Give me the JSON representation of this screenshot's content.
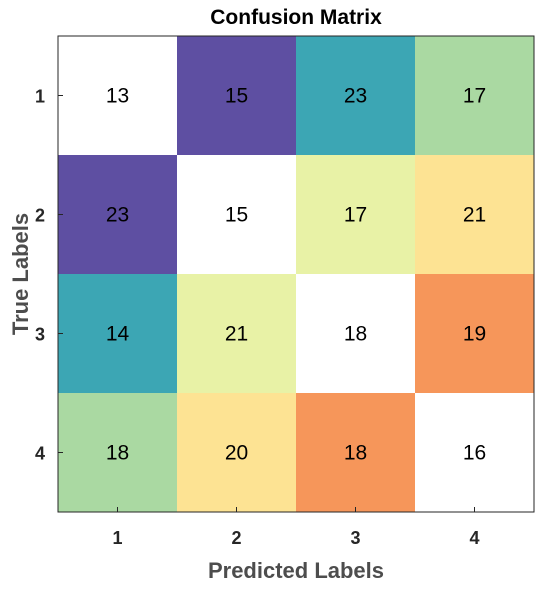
{
  "chart_data": {
    "type": "heatmap",
    "title": "Confusion Matrix",
    "xlabel": "Predicted Labels",
    "ylabel": "True Labels",
    "x_categories": [
      "1",
      "2",
      "3",
      "4"
    ],
    "y_categories": [
      "1",
      "2",
      "3",
      "4"
    ],
    "values": [
      [
        13,
        15,
        23,
        17
      ],
      [
        23,
        15,
        17,
        21
      ],
      [
        14,
        21,
        18,
        19
      ],
      [
        18,
        20,
        18,
        16
      ]
    ],
    "cell_colors": [
      [
        "#ffffff",
        "#5e4fa2",
        "#3ca6b4",
        "#aad9a2"
      ],
      [
        "#5e4fa2",
        "#ffffff",
        "#e8f2a6",
        "#fde393"
      ],
      [
        "#3ca6b4",
        "#e8f2a6",
        "#ffffff",
        "#f6965a"
      ],
      [
        "#aad9a2",
        "#fde393",
        "#f6965a",
        "#ffffff"
      ]
    ]
  }
}
